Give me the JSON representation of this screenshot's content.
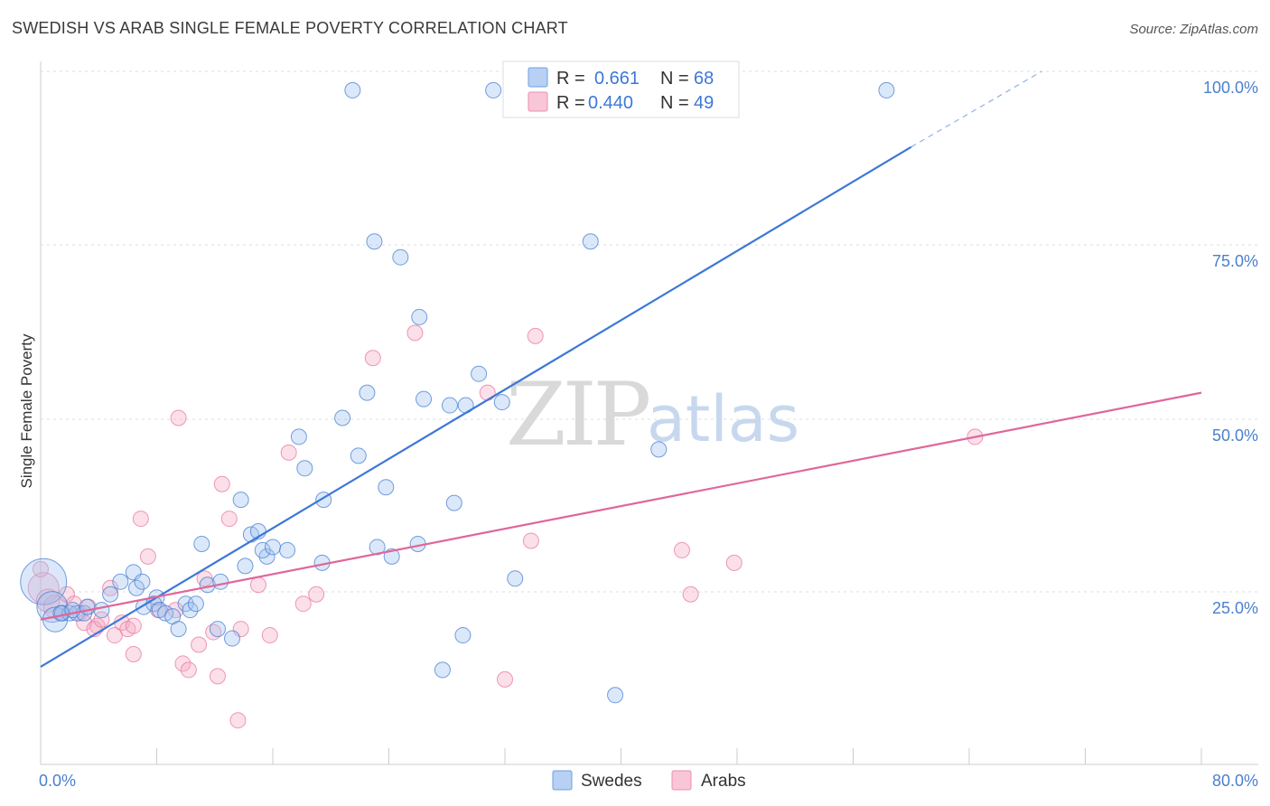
{
  "title": "SWEDISH VS ARAB SINGLE FEMALE POVERTY CORRELATION CHART",
  "source": "Source: ZipAtlas.com",
  "watermark": {
    "part1": "ZIP",
    "part2": "atlas"
  },
  "colors": {
    "blue": "#3c78d8",
    "pink": "#e0669a",
    "blue_fill": "#a9c6ef",
    "pink_fill": "#f5b6cb",
    "tick_text": "#4a7fcf"
  },
  "legend": {
    "r_label": "R =",
    "n_label": "N =",
    "rows": [
      {
        "series": "Swedes",
        "r": "0.661",
        "n": "68"
      },
      {
        "series": "Arabs",
        "r": "0.440",
        "n": "49"
      }
    ]
  },
  "chart_data": {
    "type": "scatter",
    "title": "SWEDISH VS ARAB SINGLE FEMALE POVERTY CORRELATION CHART",
    "xlabel": "",
    "ylabel": "Single Female Poverty",
    "xlim": [
      0,
      80
    ],
    "ylim": [
      0,
      100
    ],
    "x_tick_labels": [
      "0.0%",
      "80.0%"
    ],
    "y_tick_labels": [
      "25.0%",
      "50.0%",
      "75.0%",
      "100.0%"
    ],
    "y_ticks": [
      25,
      50,
      75,
      100
    ],
    "grid": true,
    "legend_position": "top-center",
    "series": [
      {
        "name": "Swedes",
        "color": "#3c78d8",
        "r": 0.661,
        "n": 68,
        "trend": {
          "x": [
            0,
            60
          ],
          "y": [
            15.5,
            98
          ],
          "dashed_extension_to": [
            69,
            110
          ]
        },
        "points": [
          [
            0.2,
            29,
            3
          ],
          [
            0.8,
            25,
            2
          ],
          [
            1.0,
            23,
            1.6
          ],
          [
            1.5,
            24,
            1
          ],
          [
            2.0,
            24,
            1
          ],
          [
            2.5,
            24,
            1
          ],
          [
            3.0,
            24,
            1
          ],
          [
            1.4,
            24,
            1
          ],
          [
            2.2,
            24.5,
            1
          ],
          [
            3.2,
            25,
            1
          ],
          [
            4.2,
            24.5,
            1
          ],
          [
            4.8,
            27,
            1
          ],
          [
            5.5,
            29,
            1
          ],
          [
            6.4,
            30.5,
            1
          ],
          [
            6.6,
            28,
            1
          ],
          [
            7.0,
            29,
            1
          ],
          [
            7.1,
            25,
            1
          ],
          [
            8.0,
            26.5,
            1
          ],
          [
            7.8,
            25.5,
            1
          ],
          [
            8.2,
            24.5,
            1
          ],
          [
            8.6,
            24,
            1
          ],
          [
            9.1,
            23.5,
            1
          ],
          [
            9.5,
            21.5,
            1
          ],
          [
            10.0,
            25.5,
            1
          ],
          [
            10.3,
            24.5,
            1
          ],
          [
            10.7,
            25.5,
            1
          ],
          [
            11.1,
            35,
            1
          ],
          [
            11.5,
            28.5,
            1
          ],
          [
            12.2,
            21.5,
            1
          ],
          [
            12.4,
            29,
            1
          ],
          [
            13.2,
            20,
            1
          ],
          [
            13.8,
            42,
            1
          ],
          [
            14.1,
            31.5,
            1
          ],
          [
            14.5,
            36.5,
            1
          ],
          [
            15.0,
            37,
            1
          ],
          [
            15.6,
            33,
            1
          ],
          [
            15.3,
            34,
            1
          ],
          [
            16.0,
            34.5,
            1
          ],
          [
            17.0,
            34,
            1
          ],
          [
            18.2,
            47,
            1
          ],
          [
            19.4,
            32,
            1
          ],
          [
            17.8,
            52,
            1
          ],
          [
            19.5,
            42,
            1
          ],
          [
            20.8,
            55,
            1
          ],
          [
            21.5,
            107,
            1
          ],
          [
            21.9,
            49,
            1
          ],
          [
            22.5,
            59,
            1
          ],
          [
            23.0,
            83,
            1
          ],
          [
            23.2,
            34.5,
            1
          ],
          [
            23.8,
            44,
            1
          ],
          [
            24.2,
            33,
            1
          ],
          [
            24.8,
            80.5,
            1
          ],
          [
            26.0,
            35,
            1
          ],
          [
            26.1,
            71,
            1
          ],
          [
            26.4,
            58,
            1
          ],
          [
            28.2,
            57,
            1
          ],
          [
            27.7,
            15,
            1
          ],
          [
            28.5,
            41.5,
            1
          ],
          [
            29.1,
            20.5,
            1
          ],
          [
            29.3,
            57,
            1
          ],
          [
            30.2,
            62,
            1
          ],
          [
            31.2,
            107,
            1
          ],
          [
            31.8,
            57.5,
            1
          ],
          [
            32.7,
            29.5,
            1
          ],
          [
            37.9,
            83,
            1
          ],
          [
            41.1,
            107,
            1
          ],
          [
            42.6,
            50,
            1
          ],
          [
            39.6,
            11,
            1
          ],
          [
            58.3,
            107,
            1
          ]
        ]
      },
      {
        "name": "Arabs",
        "color": "#e0669a",
        "r": 0.44,
        "n": 49,
        "trend": {
          "x": [
            0,
            80
          ],
          "y": [
            23,
            59
          ]
        },
        "points": [
          [
            0.2,
            28,
            2
          ],
          [
            0.5,
            26,
            1.5
          ],
          [
            1.0,
            25,
            1.5
          ],
          [
            1.4,
            24,
            1
          ],
          [
            1.8,
            27,
            1
          ],
          [
            2.3,
            25.5,
            1
          ],
          [
            2.7,
            24,
            1
          ],
          [
            3.0,
            22.5,
            1
          ],
          [
            3.3,
            25,
            1
          ],
          [
            3.9,
            22,
            1
          ],
          [
            3.7,
            21.5,
            1
          ],
          [
            4.2,
            23,
            1
          ],
          [
            4.8,
            28,
            1
          ],
          [
            5.1,
            20.5,
            1
          ],
          [
            5.6,
            22.5,
            1
          ],
          [
            6.0,
            21.5,
            1
          ],
          [
            6.4,
            22,
            1
          ],
          [
            6.4,
            17.5,
            1
          ],
          [
            6.9,
            39,
            1
          ],
          [
            7.4,
            33,
            1
          ],
          [
            8.1,
            24.5,
            1
          ],
          [
            9.3,
            24.5,
            1
          ],
          [
            9.5,
            55,
            1
          ],
          [
            9.8,
            16,
            1
          ],
          [
            10.2,
            15,
            1
          ],
          [
            10.9,
            19,
            1
          ],
          [
            11.3,
            29.5,
            1
          ],
          [
            11.9,
            21,
            1
          ],
          [
            12.2,
            14,
            1
          ],
          [
            12.5,
            44.5,
            1
          ],
          [
            13.0,
            39,
            1
          ],
          [
            13.6,
            7,
            1
          ],
          [
            13.8,
            21.5,
            1
          ],
          [
            15.0,
            28.5,
            1
          ],
          [
            15.8,
            20.5,
            1
          ],
          [
            17.1,
            49.5,
            1
          ],
          [
            18.1,
            25.5,
            1
          ],
          [
            19.0,
            27,
            1
          ],
          [
            22.9,
            64.5,
            1
          ],
          [
            25.8,
            68.5,
            1
          ],
          [
            30.8,
            59,
            1
          ],
          [
            32.0,
            13.5,
            1
          ],
          [
            34.1,
            68,
            1
          ],
          [
            33.8,
            35.5,
            1
          ],
          [
            44.2,
            34,
            1
          ],
          [
            44.8,
            27,
            1
          ],
          [
            47.8,
            32,
            1
          ],
          [
            64.4,
            52,
            1
          ],
          [
            0.0,
            31,
            1
          ]
        ]
      }
    ]
  }
}
